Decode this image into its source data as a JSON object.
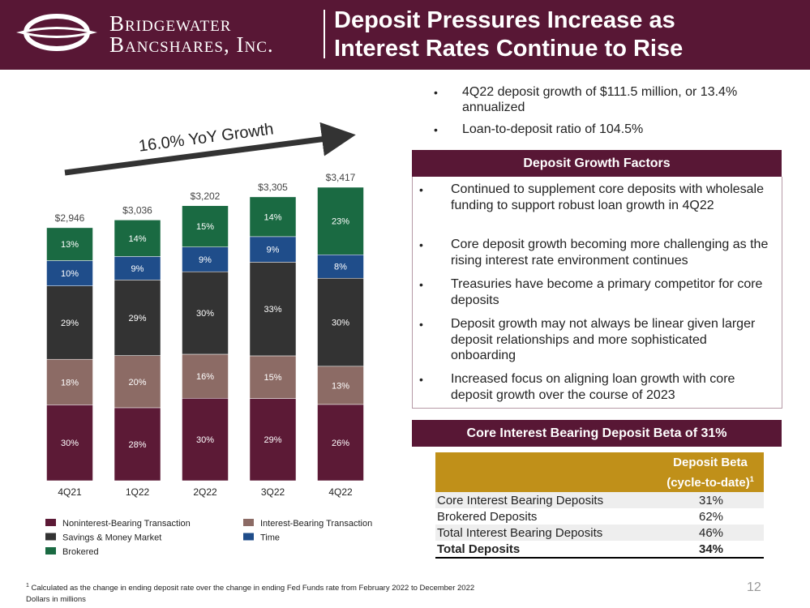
{
  "header": {
    "logo_line1": "Bridgewater",
    "logo_line2": "Bancshares, Inc.",
    "title_line1": "Deposit Pressures Increase as",
    "title_line2": "Interest Rates Continue to Rise"
  },
  "chart_data": {
    "type": "bar",
    "stacked": true,
    "annotation": "16.0% YoY Growth",
    "categories": [
      "4Q21",
      "1Q22",
      "2Q22",
      "3Q22",
      "4Q22"
    ],
    "series": [
      {
        "name": "Noninterest-Bearing Transaction",
        "color": "#5c1a36",
        "values": [
          30,
          28,
          30,
          29,
          26
        ],
        "value_labels": [
          "30%",
          "28%",
          "30%",
          "29%",
          "26%"
        ]
      },
      {
        "name": "Interest-Bearing Transaction",
        "color": "#8c6b65",
        "values": [
          18,
          20,
          16,
          15,
          13
        ],
        "value_labels": [
          "18%",
          "20%",
          "16%",
          "15%",
          "13%"
        ]
      },
      {
        "name": "Savings & Money Market",
        "color": "#333333",
        "values": [
          29,
          29,
          30,
          33,
          30
        ],
        "value_labels": [
          "29%",
          "29%",
          "30%",
          "33%",
          "30%"
        ]
      },
      {
        "name": "Time",
        "color": "#1f4d8a",
        "values": [
          10,
          9,
          9,
          9,
          8
        ],
        "value_labels": [
          "10%",
          "9%",
          "9%",
          "9%",
          "8%"
        ]
      },
      {
        "name": "Brokered",
        "color": "#1a6a42",
        "values": [
          13,
          14,
          15,
          14,
          23
        ],
        "value_labels": [
          "13%",
          "14%",
          "15%",
          "14%",
          "23%"
        ]
      }
    ],
    "totals": {
      "values": [
        2946,
        3036,
        3202,
        3305,
        3417
      ],
      "value_labels": [
        "$2,946",
        "$3,036",
        "$3,202",
        "$3,305",
        "$3,417"
      ]
    }
  },
  "highlights": [
    "4Q22 deposit growth of $111.5 million, or 13.4% annualized",
    "Loan-to-deposit ratio of 104.5%"
  ],
  "factors": {
    "title": "Deposit Growth Factors",
    "items": [
      "Continued to supplement core deposits with wholesale funding to support robust loan growth in 4Q22",
      "Core deposit growth becoming more challenging as the rising interest rate environment continues",
      "Treasuries have become a primary competitor for core deposits",
      "Deposit growth may not always be linear given larger deposit relationships and more sophisticated onboarding",
      "Increased focus on aligning loan growth with core deposit growth over the course of 2023"
    ]
  },
  "beta": {
    "title": "Core Interest Bearing Deposit Beta of 31%",
    "table": {
      "header_line1": "Deposit Beta",
      "header_line2": "(cycle-to-date)",
      "header_note": "1",
      "rows": [
        [
          "Core Interest Bearing Deposits",
          "31%"
        ],
        [
          "Brokered Deposits",
          "62%"
        ],
        [
          "Total Interest Bearing Deposits",
          "46%"
        ],
        [
          "Total Deposits",
          "34%"
        ]
      ]
    }
  },
  "footnote_mark": "1",
  "footnote": "Calculated as the change in ending deposit rate over the change in ending Fed Funds rate from February 2022 to December 2022",
  "units": "Dollars in millions",
  "page_number": "12"
}
